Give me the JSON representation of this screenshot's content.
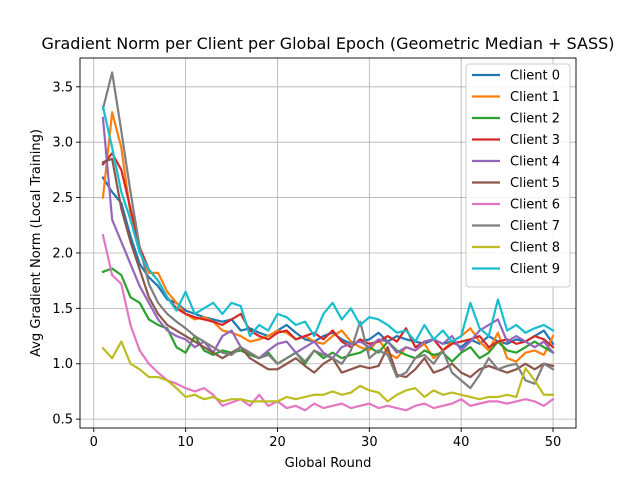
{
  "chart_data": {
    "type": "line",
    "title": "Gradient Norm per Client per Global Epoch (Geometric Median + SASS)",
    "xlabel": "Global Round",
    "ylabel": "Avg Gradient Norm (Local Training)",
    "xlim": [
      -1.5,
      52.5
    ],
    "ylim": [
      0.42,
      3.76
    ],
    "xticks": [
      0,
      10,
      20,
      30,
      40,
      50
    ],
    "yticks": [
      0.5,
      1.0,
      1.5,
      2.0,
      2.5,
      3.0,
      3.5
    ],
    "xtick_labels": [
      "0",
      "10",
      "20",
      "30",
      "40",
      "50"
    ],
    "ytick_labels": [
      "0.5",
      "1.0",
      "1.5",
      "2.0",
      "2.5",
      "3.0",
      "3.5"
    ],
    "grid": true,
    "legend_position": "top-right",
    "x": [
      1,
      2,
      3,
      4,
      5,
      6,
      7,
      8,
      9,
      10,
      11,
      12,
      13,
      14,
      15,
      16,
      17,
      18,
      19,
      20,
      21,
      22,
      23,
      24,
      25,
      26,
      27,
      28,
      29,
      30,
      31,
      32,
      33,
      34,
      35,
      36,
      37,
      38,
      39,
      40,
      41,
      42,
      43,
      44,
      45,
      46,
      47,
      48,
      49,
      50
    ],
    "series": [
      {
        "name": "Client 0",
        "color": "#1f77b4",
        "values": [
          2.68,
          2.55,
          2.45,
          2.15,
          1.9,
          1.78,
          1.7,
          1.58,
          1.55,
          1.48,
          1.45,
          1.42,
          1.4,
          1.38,
          1.4,
          1.3,
          1.32,
          1.28,
          1.25,
          1.3,
          1.35,
          1.28,
          1.22,
          1.2,
          1.25,
          1.28,
          1.22,
          1.18,
          1.2,
          1.22,
          1.28,
          1.2,
          1.25,
          1.22,
          1.2,
          1.18,
          1.22,
          1.18,
          1.2,
          1.15,
          1.22,
          1.18,
          1.25,
          1.2,
          1.18,
          1.22,
          1.2,
          1.25,
          1.3,
          1.18
        ]
      },
      {
        "name": "Client 1",
        "color": "#ff7f0e",
        "values": [
          2.5,
          3.27,
          2.95,
          2.35,
          2.05,
          1.82,
          1.82,
          1.65,
          1.55,
          1.45,
          1.4,
          1.42,
          1.38,
          1.3,
          1.28,
          1.25,
          1.2,
          1.22,
          1.25,
          1.3,
          1.28,
          1.22,
          1.25,
          1.2,
          1.18,
          1.25,
          1.3,
          1.2,
          1.15,
          1.12,
          1.22,
          1.1,
          1.05,
          1.15,
          1.12,
          1.18,
          1.05,
          1.12,
          1.2,
          1.25,
          1.32,
          1.2,
          1.12,
          1.28,
          1.05,
          1.02,
          1.1,
          1.12,
          1.08,
          1.25
        ]
      },
      {
        "name": "Client 2",
        "color": "#2ca02c",
        "values": [
          1.83,
          1.86,
          1.8,
          1.6,
          1.55,
          1.4,
          1.35,
          1.32,
          1.15,
          1.1,
          1.25,
          1.12,
          1.08,
          1.12,
          1.1,
          1.12,
          1.08,
          1.05,
          1.1,
          1.0,
          1.05,
          1.1,
          1.0,
          1.12,
          1.05,
          1.1,
          1.05,
          1.08,
          1.1,
          1.15,
          1.1,
          1.2,
          1.12,
          1.08,
          1.05,
          1.12,
          1.08,
          1.1,
          1.02,
          1.1,
          1.15,
          1.05,
          1.1,
          1.2,
          1.12,
          1.1,
          1.15,
          1.2,
          1.15,
          1.1
        ]
      },
      {
        "name": "Client 3",
        "color": "#d62728",
        "values": [
          2.8,
          2.9,
          2.75,
          2.4,
          2.05,
          1.85,
          1.75,
          1.6,
          1.5,
          1.45,
          1.42,
          1.4,
          1.38,
          1.35,
          1.4,
          1.45,
          1.3,
          1.25,
          1.22,
          1.28,
          1.3,
          1.22,
          1.25,
          1.28,
          1.22,
          1.3,
          1.2,
          1.15,
          1.22,
          1.18,
          1.2,
          1.25,
          1.2,
          1.32,
          1.15,
          1.2,
          1.22,
          1.12,
          1.18,
          1.2,
          1.22,
          1.25,
          1.15,
          1.2,
          1.22,
          1.18,
          1.2,
          1.25,
          1.22,
          1.15
        ]
      },
      {
        "name": "Client 4",
        "color": "#9467bd",
        "values": [
          3.22,
          2.3,
          2.1,
          1.9,
          1.7,
          1.55,
          1.4,
          1.3,
          1.25,
          1.22,
          1.15,
          1.2,
          1.1,
          1.25,
          1.3,
          1.15,
          1.1,
          1.05,
          1.12,
          1.18,
          1.2,
          1.1,
          1.15,
          1.2,
          1.1,
          1.05,
          1.15,
          1.18,
          1.2,
          1.15,
          1.22,
          1.2,
          1.1,
          1.15,
          1.12,
          1.2,
          1.22,
          1.18,
          1.25,
          1.12,
          1.2,
          1.3,
          1.35,
          1.4,
          1.2,
          1.25,
          1.2,
          1.15,
          1.2,
          1.1
        ]
      },
      {
        "name": "Client 5",
        "color": "#8c564b",
        "values": [
          2.82,
          2.85,
          2.4,
          2.1,
          1.85,
          1.6,
          1.45,
          1.35,
          1.3,
          1.25,
          1.2,
          1.15,
          1.1,
          1.05,
          1.1,
          1.15,
          1.05,
          1.0,
          0.95,
          0.95,
          1.0,
          1.05,
          0.98,
          0.92,
          1.0,
          1.05,
          0.92,
          0.95,
          0.98,
          0.96,
          0.98,
          1.15,
          0.9,
          0.88,
          0.95,
          1.05,
          0.92,
          0.95,
          1.0,
          0.92,
          0.88,
          0.95,
          0.98,
          0.95,
          0.92,
          0.95,
          1.0,
          0.95,
          1.0,
          0.98
        ]
      },
      {
        "name": "Client 6",
        "color": "#e377c2",
        "values": [
          2.16,
          1.8,
          1.72,
          1.35,
          1.12,
          1.0,
          0.92,
          0.85,
          0.82,
          0.78,
          0.75,
          0.78,
          0.72,
          0.62,
          0.65,
          0.68,
          0.62,
          0.72,
          0.62,
          0.66,
          0.6,
          0.62,
          0.58,
          0.64,
          0.6,
          0.62,
          0.64,
          0.6,
          0.62,
          0.64,
          0.6,
          0.62,
          0.6,
          0.58,
          0.62,
          0.64,
          0.6,
          0.62,
          0.64,
          0.68,
          0.62,
          0.64,
          0.66,
          0.66,
          0.64,
          0.66,
          0.68,
          0.66,
          0.62,
          0.68
        ]
      },
      {
        "name": "Client 7",
        "color": "#7f7f7f",
        "values": [
          3.3,
          3.63,
          3.1,
          2.55,
          2.05,
          1.72,
          1.55,
          1.45,
          1.38,
          1.32,
          1.25,
          1.2,
          1.15,
          1.1,
          1.08,
          1.15,
          1.1,
          1.05,
          1.08,
          1.0,
          1.05,
          1.1,
          1.02,
          1.12,
          1.08,
          1.05,
          1.0,
          1.12,
          1.38,
          1.05,
          1.12,
          1.08,
          0.88,
          0.92,
          1.05,
          1.08,
          1.0,
          1.12,
          0.92,
          0.85,
          0.78,
          0.9,
          1.05,
          0.95,
          0.98,
          1.0,
          0.85,
          0.82,
          1.0,
          0.95
        ]
      },
      {
        "name": "Client 8",
        "color": "#bcbd22",
        "values": [
          1.14,
          1.05,
          1.2,
          1.0,
          0.95,
          0.88,
          0.88,
          0.85,
          0.78,
          0.7,
          0.72,
          0.68,
          0.7,
          0.66,
          0.68,
          0.68,
          0.66,
          0.66,
          0.66,
          0.66,
          0.7,
          0.68,
          0.7,
          0.72,
          0.72,
          0.75,
          0.72,
          0.74,
          0.8,
          0.76,
          0.74,
          0.66,
          0.72,
          0.76,
          0.78,
          0.7,
          0.76,
          0.72,
          0.74,
          0.72,
          0.7,
          0.68,
          0.7,
          0.7,
          0.72,
          0.7,
          0.96,
          0.85,
          0.72,
          0.72
        ]
      },
      {
        "name": "Client 9",
        "color": "#17becf",
        "values": [
          3.32,
          2.95,
          2.55,
          2.3,
          2.0,
          1.85,
          1.75,
          1.6,
          1.48,
          1.65,
          1.45,
          1.5,
          1.55,
          1.45,
          1.55,
          1.52,
          1.25,
          1.35,
          1.3,
          1.45,
          1.42,
          1.35,
          1.38,
          1.25,
          1.45,
          1.55,
          1.4,
          1.5,
          1.35,
          1.42,
          1.4,
          1.35,
          1.28,
          1.3,
          1.2,
          1.35,
          1.22,
          1.3,
          1.2,
          1.25,
          1.55,
          1.32,
          1.25,
          1.58,
          1.3,
          1.35,
          1.28,
          1.32,
          1.35,
          1.3
        ]
      }
    ]
  }
}
